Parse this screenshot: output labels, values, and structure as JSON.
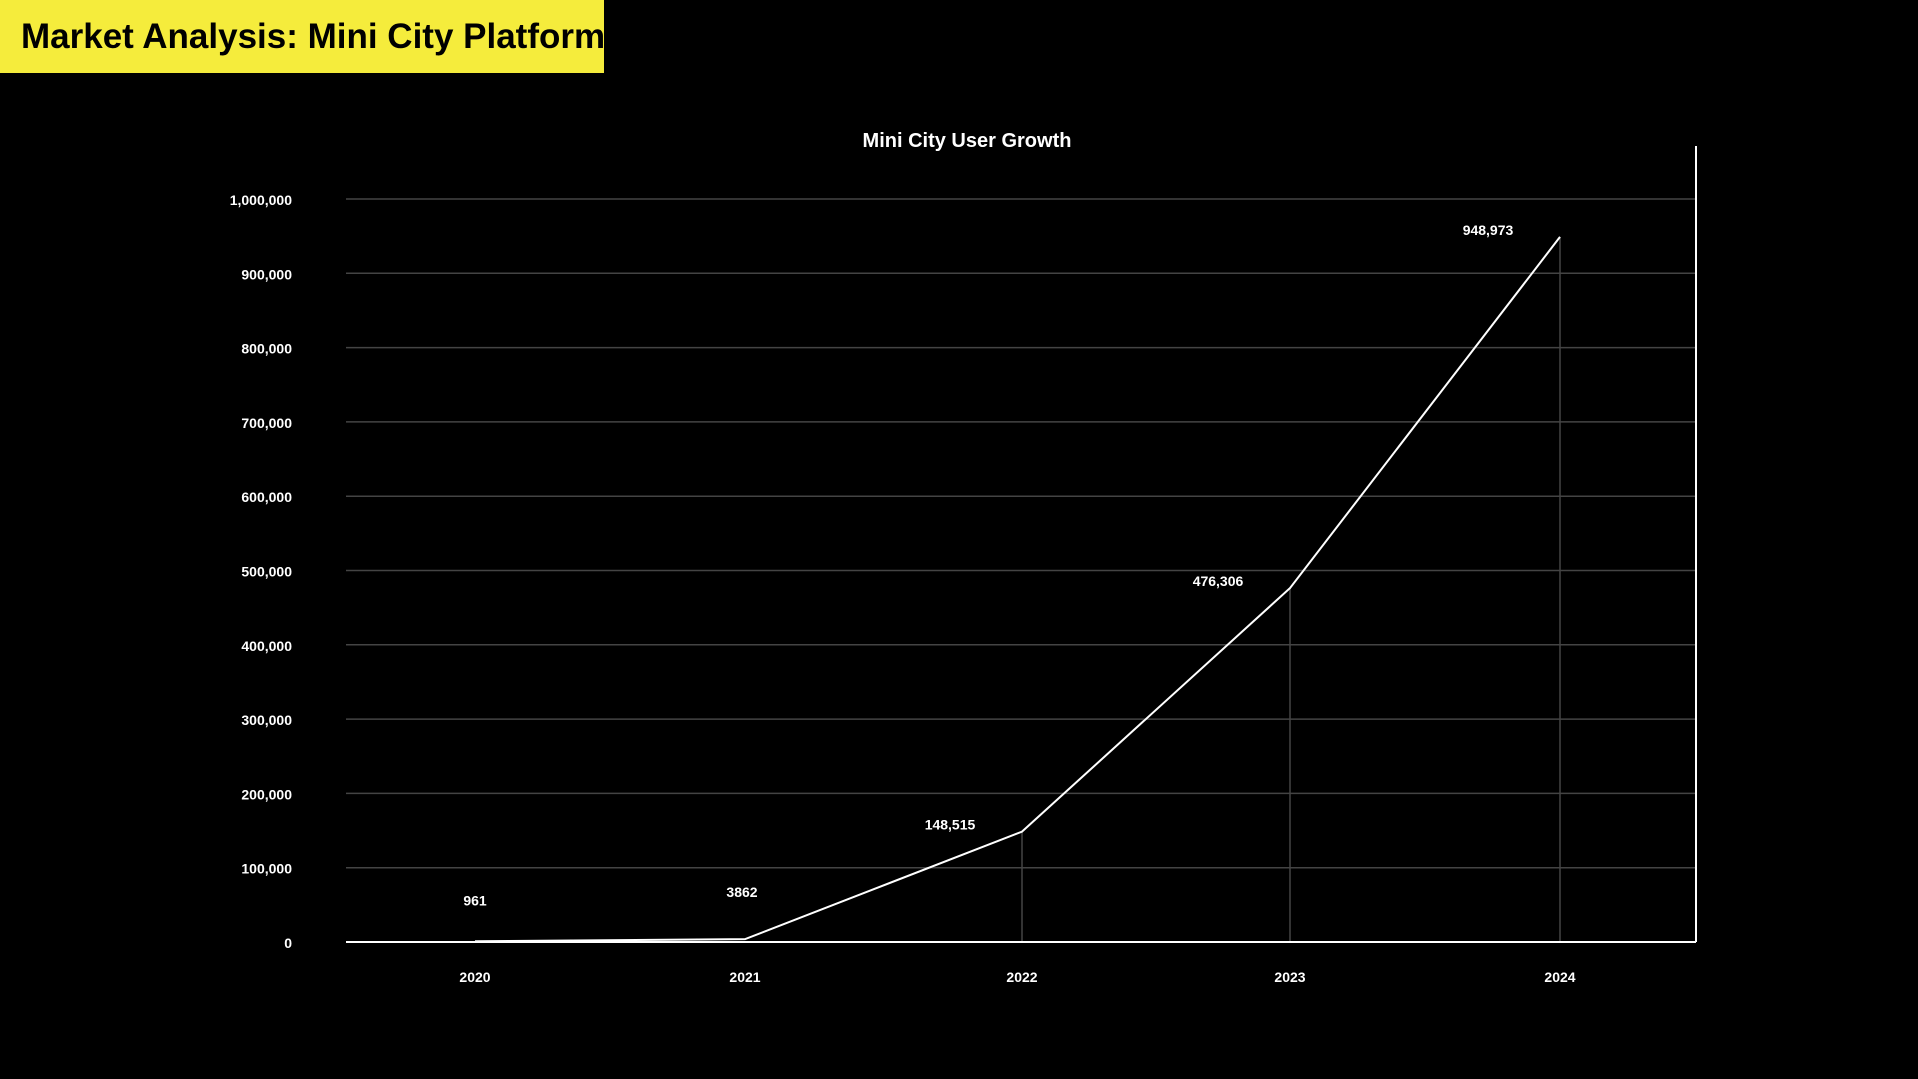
{
  "page": {
    "title": "Market Analysis: Mini City Platform"
  },
  "colors": {
    "background": "#000000",
    "banner": "#f5ec3c",
    "banner_text": "#000000",
    "line": "#ffffff",
    "grid": "#444444",
    "text": "#ffffff"
  },
  "chart_data": {
    "type": "line",
    "title": "Mini City User Growth",
    "xlabel": "",
    "ylabel": "",
    "categories": [
      "2020",
      "2021",
      "2022",
      "2023",
      "2024"
    ],
    "series": [
      {
        "values": [
          961,
          3862,
          148515,
          476306,
          948973
        ]
      }
    ],
    "data_labels": [
      "961",
      "3862",
      "148,515",
      "476,306",
      "948,973"
    ],
    "y_ticks": [
      0,
      100000,
      200000,
      300000,
      400000,
      500000,
      600000,
      700000,
      800000,
      900000,
      1000000
    ],
    "y_tick_labels": [
      "0",
      "100,000",
      "200,000",
      "300,000",
      "400,000",
      "500,000",
      "600,000",
      "700,000",
      "800,000",
      "900,000",
      "1,000,000"
    ],
    "ylim": [
      0,
      1000000
    ],
    "grid": true,
    "drop_lines": true,
    "legend": "none"
  }
}
